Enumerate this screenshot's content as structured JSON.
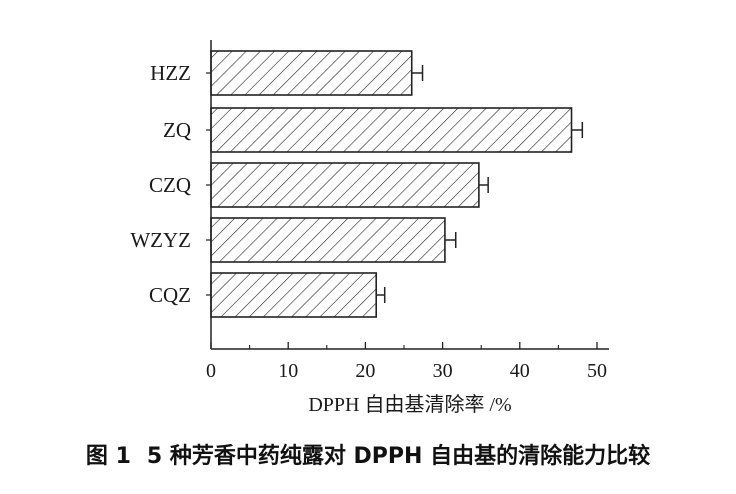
{
  "figure": {
    "caption_label": "图 1",
    "caption_text": "5 种芳香中药纯露对 DPPH 自由基的清除能力比较"
  },
  "chart_data": {
    "type": "bar",
    "orientation": "horizontal",
    "categories": [
      "HZZ",
      "ZQ",
      "CZQ",
      "WZYZ",
      "CQZ"
    ],
    "values": [
      26.0,
      46.7,
      34.7,
      30.3,
      21.4
    ],
    "errors": [
      1.4,
      1.4,
      1.2,
      1.4,
      1.1
    ],
    "xlabel": "DPPH 自由基清除率 /%",
    "ylabel": "",
    "xlim": [
      0,
      50
    ],
    "xticks": [
      0,
      10,
      20,
      30,
      40,
      50
    ],
    "grid": false,
    "bar_fill": "hatched",
    "colors": {
      "bar_stroke": "#222222",
      "hatch": "#222222",
      "axis": "#222222",
      "text": "#1a1a1a"
    }
  }
}
